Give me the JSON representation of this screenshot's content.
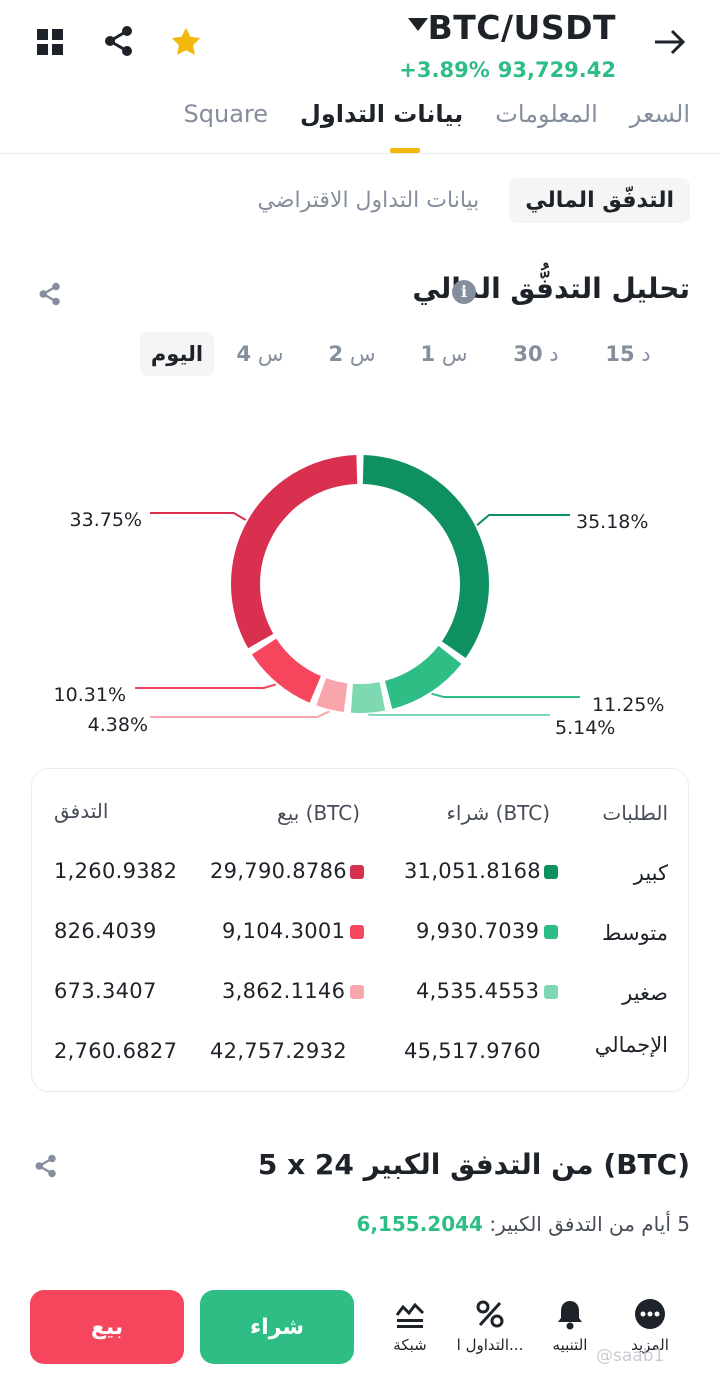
{
  "header": {
    "pair": "BTC/USDT",
    "price": "93,729.42",
    "change": "+3.89%",
    "colors": {
      "up": "#2ebd85",
      "down": "#f6465d",
      "accent": "#f0b90b"
    }
  },
  "tabs": [
    {
      "label": "السعر",
      "active": false
    },
    {
      "label": "المعلومات",
      "active": false
    },
    {
      "label": "بيانات التداول",
      "active": true
    },
    {
      "label": "Square",
      "active": false
    }
  ],
  "subtabs": [
    {
      "label": "التدفّق المالي",
      "active": true
    },
    {
      "label": "بيانات التداول الاقتراضي",
      "active": false
    }
  ],
  "analysis": {
    "title": "تحليل التدفُّق المالي",
    "periods": [
      {
        "num": "15",
        "unit": "د"
      },
      {
        "num": "30",
        "unit": "د"
      },
      {
        "num": "1",
        "unit": "س"
      },
      {
        "num": "2",
        "unit": "س"
      },
      {
        "num": "4",
        "unit": "س"
      },
      {
        "label": "اليوم",
        "active": true
      }
    ]
  },
  "chart_data": {
    "type": "pie",
    "style": "donut",
    "slices": [
      {
        "name": "شراء كبير",
        "value": 35.18,
        "label": "35.18%",
        "color": "#0e9061"
      },
      {
        "name": "شراء متوسط",
        "value": 11.25,
        "label": "11.25%",
        "color": "#2ebd85"
      },
      {
        "name": "شراء صغير",
        "value": 5.14,
        "label": "5.14%",
        "color": "#7ed8b2"
      },
      {
        "name": "بيع صغير",
        "value": 4.38,
        "label": "4.38%",
        "color": "#f8a5ac"
      },
      {
        "name": "بيع متوسط",
        "value": 10.31,
        "label": "10.31%",
        "color": "#f6465d"
      },
      {
        "name": "بيع كبير",
        "value": 33.75,
        "label": "33.75%",
        "color": "#d9304f"
      }
    ]
  },
  "table": {
    "headers": {
      "orders": "الطلبات",
      "buy": "شراء (BTC)",
      "sell": "بيع (BTC)",
      "flow": "التدفق"
    },
    "rows": [
      {
        "label": "كبير",
        "buy": "31,051.8168",
        "sell": "29,790.8786",
        "flow": "1,260.9382",
        "buy_color": "#0e9061",
        "sell_color": "#d9304f"
      },
      {
        "label": "متوسط",
        "buy": "9,930.7039",
        "sell": "9,104.3001",
        "flow": "826.4039",
        "buy_color": "#2ebd85",
        "sell_color": "#f6465d"
      },
      {
        "label": "صغير",
        "buy": "4,535.4553",
        "sell": "3,862.1146",
        "flow": "673.3407",
        "buy_color": "#7ed8b2",
        "sell_color": "#f8a5ac"
      },
      {
        "label": "الإجمالي",
        "buy": "45,517.9760",
        "sell": "42,757.2932",
        "flow": "2,760.6827"
      }
    ]
  },
  "large_flow": {
    "title": "5 x 24 من التدفق الكبير (BTC)",
    "sub_label": "5 أيام من التدفق الكبير:",
    "sub_value": "6,155.2044"
  },
  "bottom_bar": {
    "sell": "بيع",
    "buy": "شراء",
    "items": [
      {
        "label": "شبكة",
        "icon": "grid-chart-icon"
      },
      {
        "label": "التداول ا...",
        "icon": "percent-icon"
      },
      {
        "label": "التنبيه",
        "icon": "bell-icon"
      },
      {
        "label": "المزيد",
        "icon": "more-icon"
      }
    ],
    "watermark": "@saab1"
  }
}
